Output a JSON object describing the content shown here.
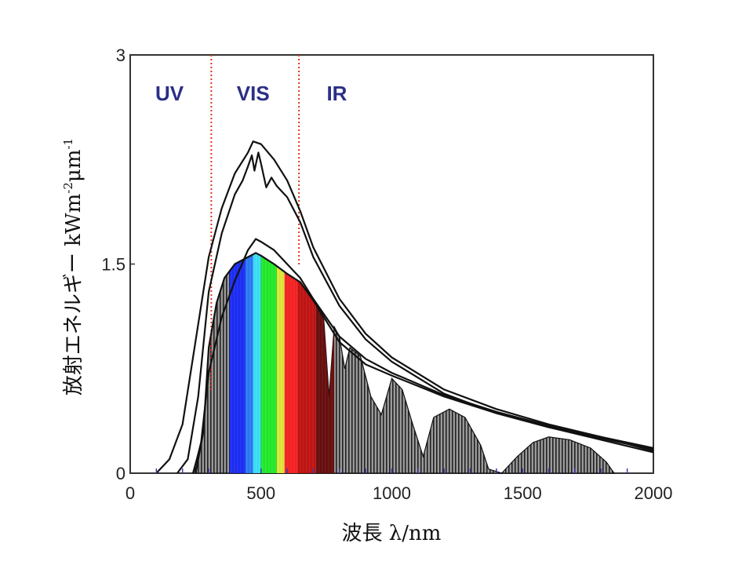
{
  "chart_data": {
    "type": "area",
    "xlabel": "波長 λ/nm",
    "ylabel_parts": [
      "放射エネルギー kWm",
      "-2",
      "μm",
      "-1"
    ],
    "xlim": [
      0,
      2000
    ],
    "ylim": [
      0,
      3
    ],
    "x_ticks": [
      {
        "value": 0,
        "label": "0"
      },
      {
        "value": 500,
        "label": "500"
      },
      {
        "value": 1000,
        "label": "1000"
      },
      {
        "value": 1500,
        "label": "1500"
      },
      {
        "value": 2000,
        "label": "2000"
      }
    ],
    "y_ticks": [
      {
        "value": 0,
        "label": "0"
      },
      {
        "value": 1.5,
        "label": "1.5"
      },
      {
        "value": 3,
        "label": "3"
      }
    ],
    "regions": [
      {
        "label": "UV",
        "x": 150
      },
      {
        "label": "VIS",
        "x": 470
      },
      {
        "label": "IR",
        "x": 790
      }
    ],
    "boundaries": [
      {
        "x": 310,
        "y_top": 3.0,
        "y_bottom": 0.58
      },
      {
        "x": 645,
        "y_top": 3.0,
        "y_bottom": 1.48
      }
    ],
    "series": [
      {
        "role": "upper-smooth",
        "points": [
          [
            100,
            0
          ],
          [
            150,
            0.1
          ],
          [
            200,
            0.35
          ],
          [
            250,
            0.95
          ],
          [
            300,
            1.55
          ],
          [
            350,
            1.9
          ],
          [
            400,
            2.15
          ],
          [
            450,
            2.3
          ],
          [
            470,
            2.38
          ],
          [
            500,
            2.36
          ],
          [
            550,
            2.25
          ],
          [
            600,
            2.1
          ],
          [
            650,
            1.88
          ],
          [
            700,
            1.62
          ],
          [
            800,
            1.25
          ],
          [
            900,
            1.0
          ],
          [
            1000,
            0.83
          ],
          [
            1200,
            0.6
          ],
          [
            1400,
            0.46
          ],
          [
            1600,
            0.35
          ],
          [
            1800,
            0.26
          ],
          [
            2000,
            0.18
          ]
        ]
      },
      {
        "role": "upper-jagged",
        "points": [
          [
            180,
            0
          ],
          [
            220,
            0.1
          ],
          [
            260,
            0.55
          ],
          [
            300,
            1.3
          ],
          [
            350,
            1.72
          ],
          [
            400,
            2.0
          ],
          [
            430,
            2.1
          ],
          [
            450,
            2.2
          ],
          [
            465,
            2.28
          ],
          [
            475,
            2.17
          ],
          [
            490,
            2.3
          ],
          [
            500,
            2.22
          ],
          [
            520,
            2.05
          ],
          [
            540,
            2.12
          ],
          [
            560,
            2.06
          ],
          [
            600,
            1.98
          ],
          [
            650,
            1.8
          ],
          [
            700,
            1.55
          ],
          [
            800,
            1.2
          ],
          [
            900,
            0.96
          ],
          [
            1000,
            0.8
          ],
          [
            1200,
            0.57
          ],
          [
            1400,
            0.43
          ],
          [
            1600,
            0.33
          ],
          [
            1800,
            0.25
          ],
          [
            2000,
            0.17
          ]
        ]
      },
      {
        "role": "lower-smooth",
        "points": [
          [
            240,
            0
          ],
          [
            270,
            0.2
          ],
          [
            300,
            0.72
          ],
          [
            350,
            1.12
          ],
          [
            400,
            1.38
          ],
          [
            450,
            1.6
          ],
          [
            480,
            1.68
          ],
          [
            500,
            1.66
          ],
          [
            550,
            1.6
          ],
          [
            600,
            1.5
          ],
          [
            650,
            1.4
          ],
          [
            700,
            1.25
          ],
          [
            800,
            0.98
          ],
          [
            900,
            0.82
          ],
          [
            1000,
            0.72
          ],
          [
            1200,
            0.56
          ],
          [
            1400,
            0.44
          ],
          [
            1600,
            0.34
          ],
          [
            1800,
            0.26
          ],
          [
            2000,
            0.16
          ]
        ]
      },
      {
        "role": "lower-jagged",
        "points": [
          [
            250,
            0
          ],
          [
            280,
            0.3
          ],
          [
            300,
            0.9
          ],
          [
            330,
            1.22
          ],
          [
            360,
            1.4
          ],
          [
            400,
            1.5
          ],
          [
            450,
            1.55
          ],
          [
            480,
            1.58
          ],
          [
            500,
            1.56
          ],
          [
            550,
            1.5
          ],
          [
            600,
            1.43
          ],
          [
            650,
            1.37
          ],
          [
            700,
            1.24
          ],
          [
            800,
            0.94
          ],
          [
            900,
            0.78
          ],
          [
            1000,
            0.7
          ],
          [
            1200,
            0.55
          ],
          [
            1400,
            0.43
          ],
          [
            1600,
            0.33
          ],
          [
            1800,
            0.24
          ],
          [
            2000,
            0.15
          ]
        ]
      }
    ],
    "filled_spectrum": {
      "fill": "#8c8c8c",
      "hatch": "#222222",
      "points": [
        [
          240,
          0
        ],
        [
          280,
          0.3
        ],
        [
          300,
          0.9
        ],
        [
          330,
          1.22
        ],
        [
          360,
          1.4
        ],
        [
          400,
          1.5
        ],
        [
          450,
          1.55
        ],
        [
          480,
          1.58
        ],
        [
          500,
          1.56
        ],
        [
          550,
          1.5
        ],
        [
          600,
          1.43
        ],
        [
          650,
          1.37
        ],
        [
          700,
          1.24
        ],
        [
          740,
          1.1
        ],
        [
          760,
          0.55
        ],
        [
          780,
          1.05
        ],
        [
          800,
          0.98
        ],
        [
          820,
          0.75
        ],
        [
          840,
          0.9
        ],
        [
          880,
          0.84
        ],
        [
          920,
          0.55
        ],
        [
          960,
          0.42
        ],
        [
          1000,
          0.68
        ],
        [
          1040,
          0.6
        ],
        [
          1080,
          0.35
        ],
        [
          1120,
          0.12
        ],
        [
          1160,
          0.4
        ],
        [
          1220,
          0.46
        ],
        [
          1280,
          0.4
        ],
        [
          1340,
          0.2
        ],
        [
          1370,
          0.03
        ],
        [
          1420,
          0.0
        ],
        [
          1480,
          0.12
        ],
        [
          1540,
          0.22
        ],
        [
          1600,
          0.26
        ],
        [
          1680,
          0.24
        ],
        [
          1760,
          0.18
        ],
        [
          1820,
          0.08
        ],
        [
          1850,
          0.0
        ]
      ]
    },
    "color_bands": [
      {
        "x0": 380,
        "x1": 440,
        "color": "#1a2cff"
      },
      {
        "x0": 440,
        "x1": 470,
        "color": "#2a7dff"
      },
      {
        "x0": 470,
        "x1": 500,
        "color": "#3ae8ff"
      },
      {
        "x0": 500,
        "x1": 560,
        "color": "#22f22a"
      },
      {
        "x0": 560,
        "x1": 590,
        "color": "#e6f03a"
      },
      {
        "x0": 590,
        "x1": 640,
        "color": "#ff2222"
      },
      {
        "x0": 640,
        "x1": 710,
        "color": "#c81010"
      },
      {
        "x0": 710,
        "x1": 780,
        "color": "#6a0c0c"
      }
    ],
    "colors": {
      "axis": "#333333",
      "curve": "#111111",
      "boundary": "#d83a1a",
      "region_text": "#2b2f86",
      "tick_marks": "#3a3ab0"
    }
  }
}
